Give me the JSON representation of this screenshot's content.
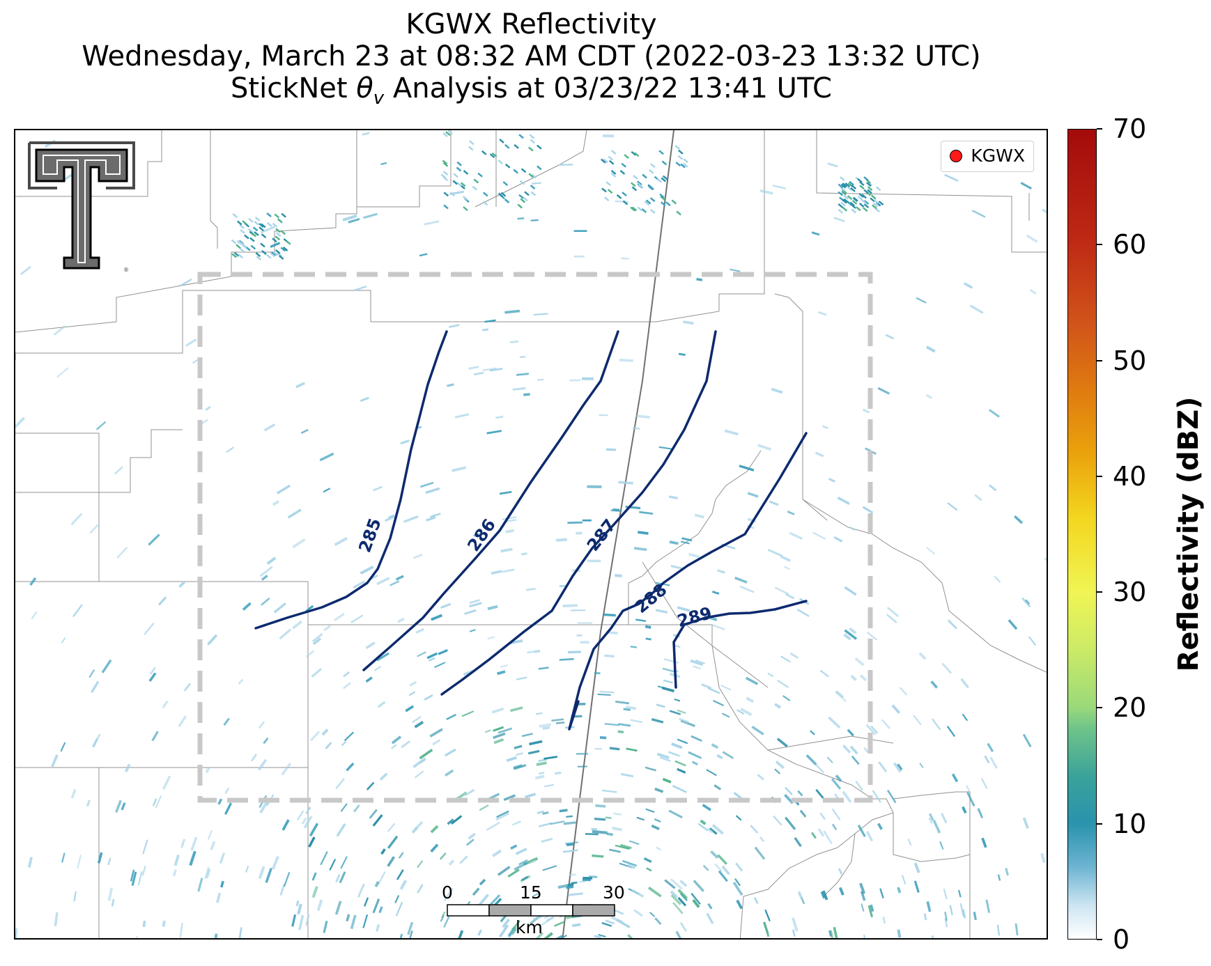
{
  "title": {
    "line1": "KGWX Reflectivity",
    "line2": "Wednesday, March 23 at 08:32 AM CDT (2022-03-23 13:32 UTC)",
    "line3_prefix": "StickNet ",
    "line3_symbol": "θ",
    "line3_sub": "v",
    "line3_suffix": " Analysis at 03/23/22 13:41 UTC"
  },
  "legend": {
    "marker_color": "#ff1a1a",
    "label": "KGWX"
  },
  "colorbar": {
    "title": "Reflectivity (dBZ)",
    "ticks": [
      "0",
      "10",
      "20",
      "30",
      "40",
      "50",
      "60",
      "70"
    ],
    "min": 0,
    "max": 70
  },
  "scale_bar": {
    "labels": [
      "0",
      "15",
      "30"
    ],
    "unit": "km"
  },
  "contours": {
    "color": "#0d2a6e",
    "levels": [
      {
        "value": "285",
        "label": "285"
      },
      {
        "value": "286",
        "label": "286"
      },
      {
        "value": "287",
        "label": "287"
      },
      {
        "value": "288",
        "label": "288"
      },
      {
        "value": "289",
        "label": "289"
      }
    ]
  },
  "logo": {
    "name": "texas-tech-double-t-logo"
  },
  "colors": {
    "echo_light": "#a8d4e8",
    "echo_mid": "#3fa0bd",
    "echo_teal": "#2a8fa8",
    "echo_green": "#52b38a",
    "analysis_box": "#c8c8c8",
    "boundaries": "#909090",
    "highway": "#707070"
  }
}
